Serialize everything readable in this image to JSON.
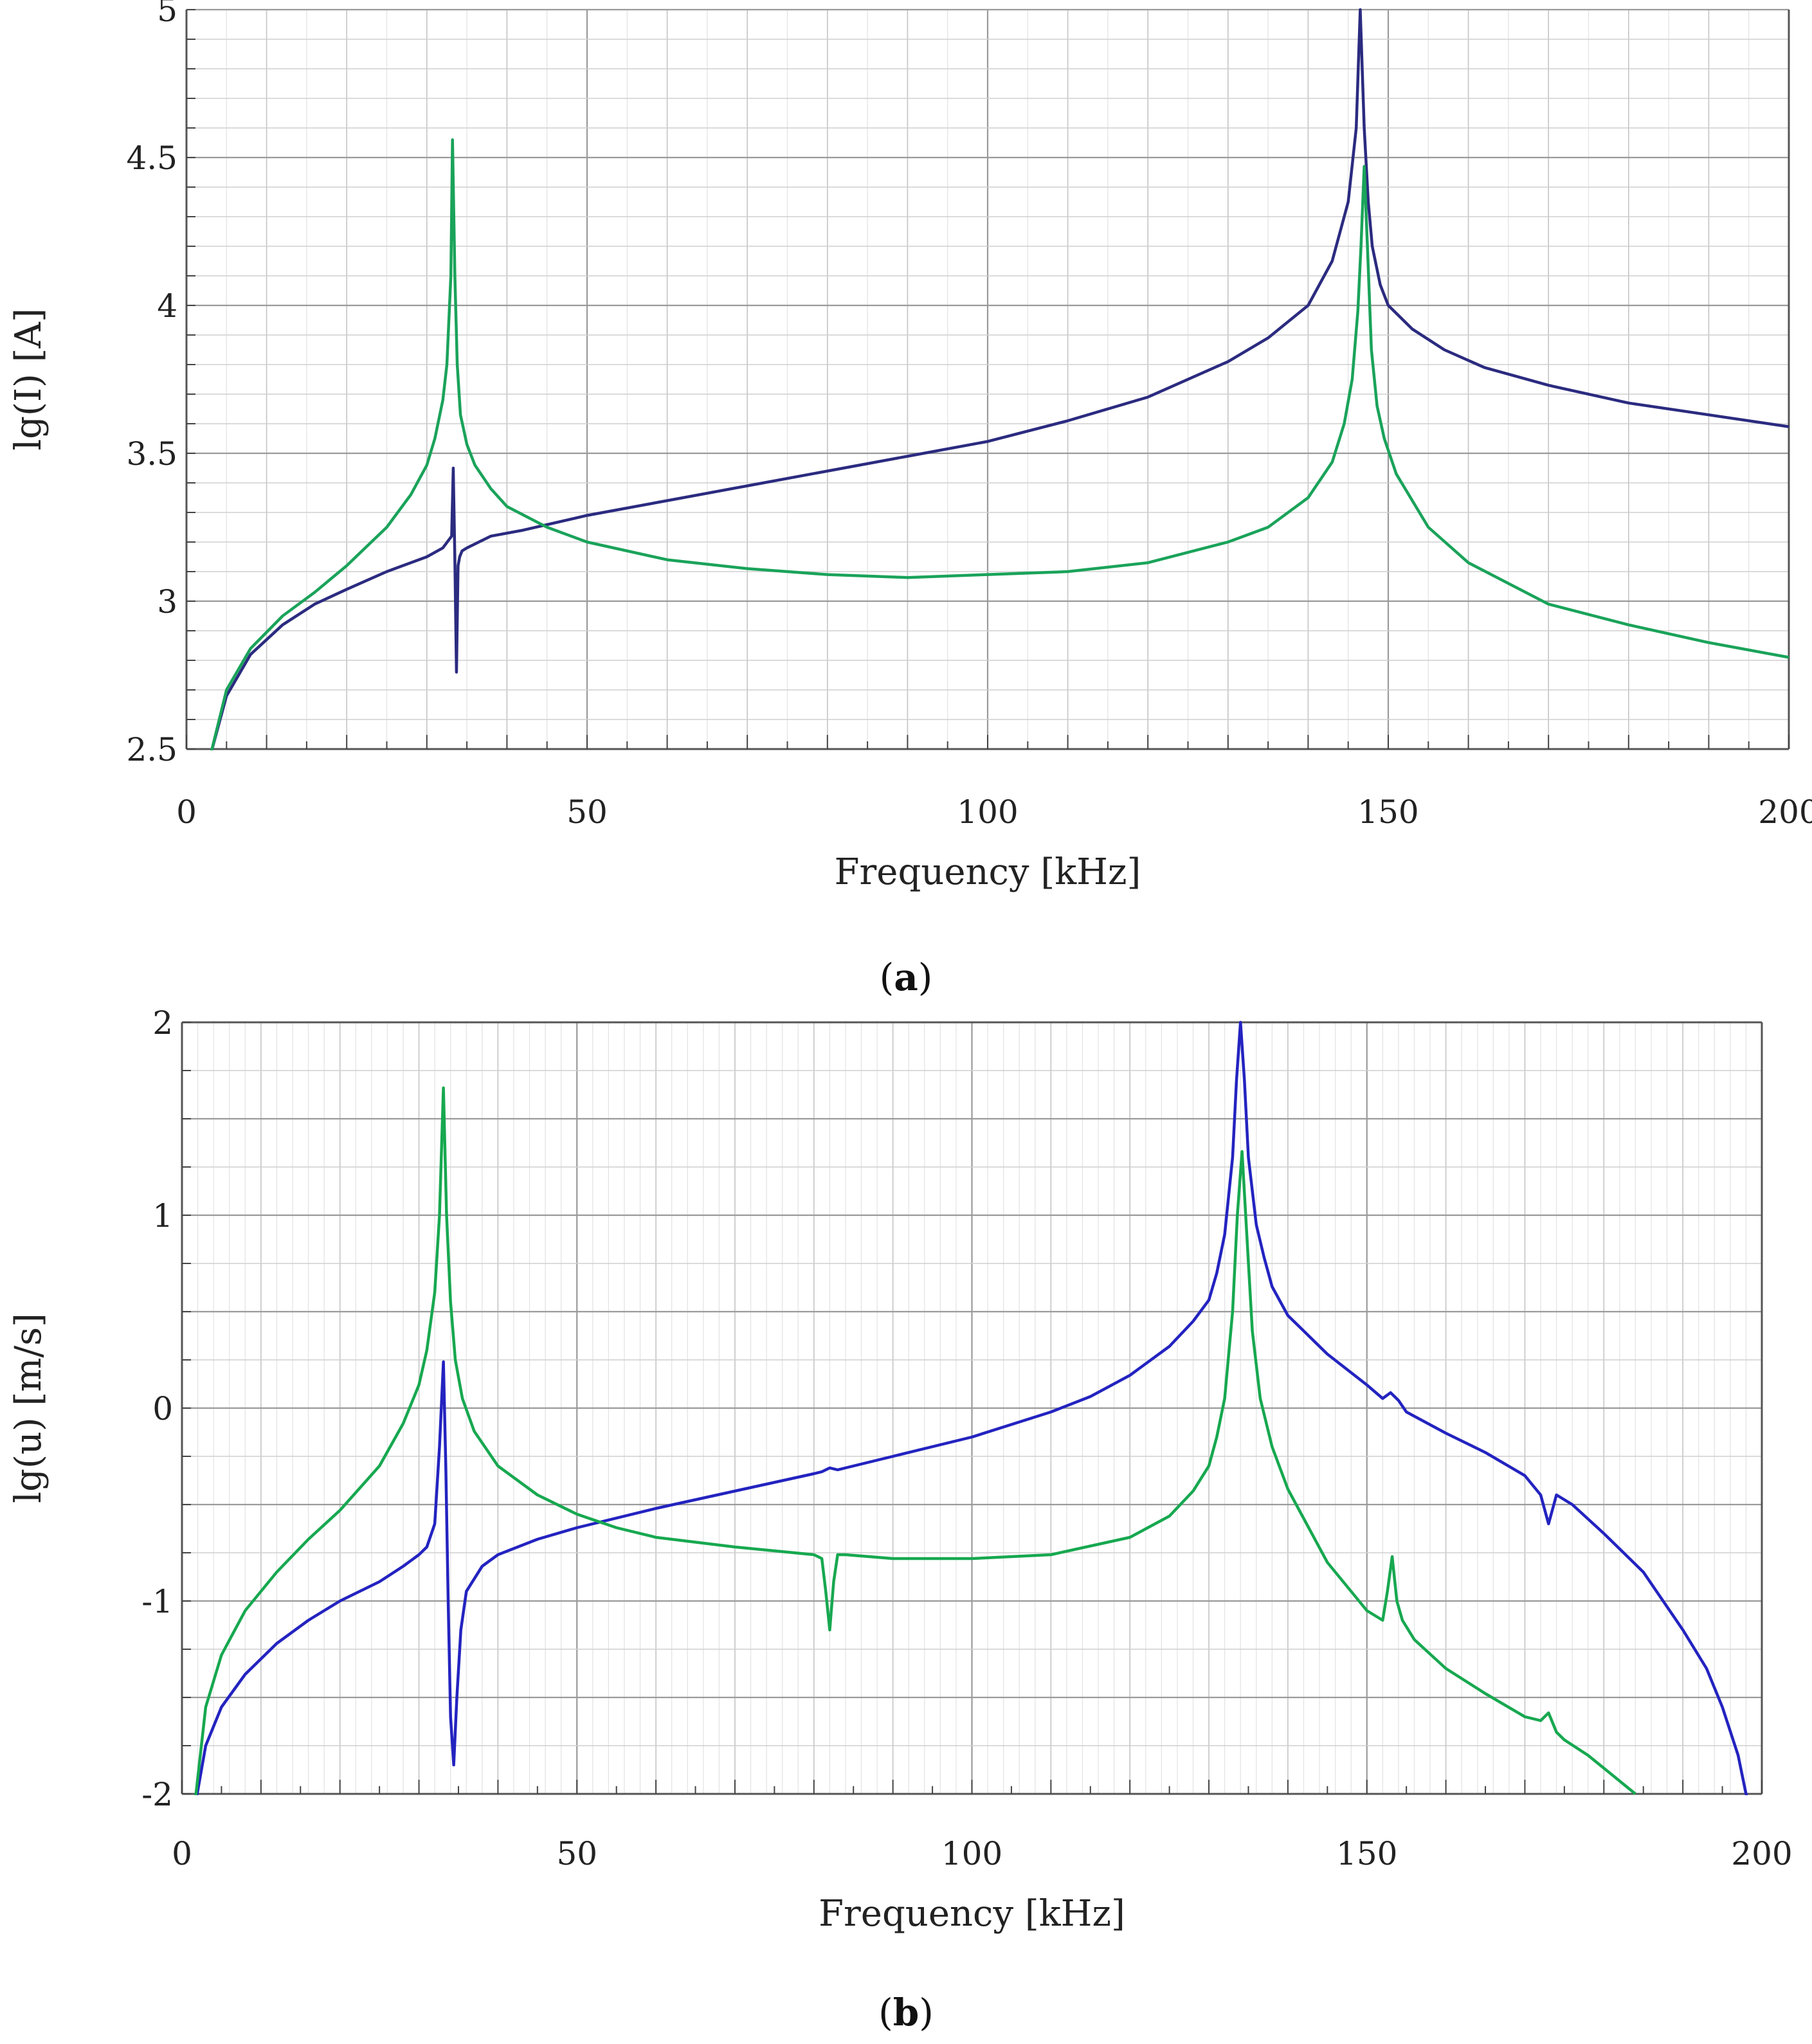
{
  "chart_data": [
    {
      "id": "a",
      "type": "line",
      "caption_letter": "a",
      "xlabel": "Frequency [kHz]",
      "ylabel": "lg(I) [A]",
      "xlim": [
        0,
        200
      ],
      "ylim": [
        2.5,
        5
      ],
      "xticks": [
        0,
        50,
        100,
        150,
        200
      ],
      "xtick_labels": [
        "0",
        "50",
        "100",
        "150",
        "200"
      ],
      "yticks": [
        2.5,
        3,
        3.5,
        4,
        4.5,
        5
      ],
      "ytick_labels": [
        "2.5",
        "3",
        "3.5",
        "4",
        "4.5",
        "5"
      ],
      "grid": true,
      "series": [
        {
          "name": "blue",
          "color": "#2b2b80",
          "x": [
            3,
            5,
            8,
            12,
            16,
            20,
            25,
            30,
            32,
            33.1,
            33.3,
            33.5,
            33.7,
            33.9,
            34.1,
            34.4,
            35,
            38,
            42,
            50,
            60,
            70,
            80,
            90,
            100,
            110,
            120,
            130,
            135,
            140,
            143,
            145,
            146,
            146.5,
            147,
            147.5,
            148,
            149,
            150,
            153,
            157,
            162,
            170,
            180,
            190,
            200
          ],
          "y": [
            2.48,
            2.68,
            2.82,
            2.92,
            2.99,
            3.04,
            3.1,
            3.15,
            3.18,
            3.22,
            3.45,
            3.14,
            2.76,
            3.12,
            3.15,
            3.17,
            3.18,
            3.22,
            3.24,
            3.29,
            3.34,
            3.39,
            3.44,
            3.49,
            3.54,
            3.61,
            3.69,
            3.81,
            3.89,
            4.0,
            4.15,
            4.35,
            4.6,
            5.0,
            4.6,
            4.35,
            4.2,
            4.07,
            4.0,
            3.92,
            3.85,
            3.79,
            3.73,
            3.67,
            3.63,
            3.59
          ]
        },
        {
          "name": "green",
          "color": "#1aa35a",
          "x": [
            3,
            5,
            8,
            12,
            16,
            20,
            25,
            28,
            30,
            31,
            32,
            32.5,
            33,
            33.2,
            33.5,
            33.8,
            34.2,
            35,
            36,
            38,
            40,
            45,
            50,
            60,
            70,
            80,
            90,
            100,
            110,
            120,
            130,
            135,
            140,
            143,
            144.5,
            145.5,
            146.2,
            146.6,
            147,
            147.4,
            147.9,
            148.6,
            149.5,
            151,
            155,
            160,
            170,
            180,
            190,
            200
          ],
          "y": [
            2.48,
            2.7,
            2.84,
            2.95,
            3.03,
            3.12,
            3.25,
            3.36,
            3.46,
            3.55,
            3.68,
            3.8,
            4.1,
            4.56,
            4.1,
            3.8,
            3.63,
            3.53,
            3.46,
            3.38,
            3.32,
            3.25,
            3.2,
            3.14,
            3.11,
            3.09,
            3.08,
            3.09,
            3.1,
            3.13,
            3.2,
            3.25,
            3.35,
            3.47,
            3.6,
            3.75,
            3.98,
            4.2,
            4.47,
            4.2,
            3.85,
            3.66,
            3.55,
            3.43,
            3.25,
            3.13,
            2.99,
            2.92,
            2.86,
            2.81
          ]
        }
      ]
    },
    {
      "id": "b",
      "type": "line",
      "caption_letter": "b",
      "xlabel": "Frequency [kHz]",
      "ylabel": "lg(u) [m/s]",
      "xlim": [
        0,
        200
      ],
      "ylim": [
        -2,
        2
      ],
      "xticks": [
        0,
        50,
        100,
        150,
        200
      ],
      "xtick_labels": [
        "0",
        "50",
        "100",
        "150",
        "200"
      ],
      "yticks": [
        -2,
        -1.5,
        -1,
        -0.5,
        0,
        0.5,
        1,
        1.5,
        2
      ],
      "ytick_labels": [
        "-2",
        "",
        "-1",
        "",
        "0",
        "",
        "1",
        "",
        "2"
      ],
      "grid": true,
      "series": [
        {
          "name": "blue",
          "color": "#2323c0",
          "x": [
            1.5,
            3,
            5,
            8,
            12,
            16,
            20,
            25,
            28,
            30,
            31,
            32,
            32.6,
            33.1,
            33.4,
            33.7,
            34,
            34.4,
            34.8,
            35.3,
            36,
            38,
            40,
            45,
            50,
            60,
            70,
            80,
            81,
            82,
            83,
            84,
            90,
            100,
            110,
            115,
            120,
            125,
            128,
            130,
            131,
            132,
            133,
            133.5,
            134,
            134.5,
            135,
            136,
            137,
            138,
            140,
            145,
            150,
            152,
            153,
            154,
            155,
            160,
            165,
            170,
            171,
            172,
            173,
            174,
            176,
            180,
            185,
            190,
            193,
            195,
            197,
            198,
            199
          ],
          "y": [
            -2.1,
            -1.75,
            -1.55,
            -1.38,
            -1.22,
            -1.1,
            -1.0,
            -0.9,
            -0.82,
            -0.76,
            -0.72,
            -0.6,
            -0.2,
            0.24,
            -0.3,
            -1.0,
            -1.6,
            -1.85,
            -1.5,
            -1.15,
            -0.95,
            -0.82,
            -0.76,
            -0.68,
            -0.62,
            -0.52,
            -0.43,
            -0.34,
            -0.33,
            -0.31,
            -0.32,
            -0.31,
            -0.25,
            -0.15,
            -0.02,
            0.06,
            0.17,
            0.32,
            0.45,
            0.56,
            0.7,
            0.9,
            1.3,
            1.7,
            2.0,
            1.7,
            1.3,
            0.95,
            0.78,
            0.63,
            0.48,
            0.28,
            0.12,
            0.05,
            0.08,
            0.04,
            -0.02,
            -0.13,
            -0.23,
            -0.35,
            -0.4,
            -0.45,
            -0.6,
            -0.45,
            -0.5,
            -0.65,
            -0.85,
            -1.15,
            -1.35,
            -1.55,
            -1.8,
            -2.0,
            -2.2
          ]
        },
        {
          "name": "green",
          "color": "#17a850",
          "x": [
            1.5,
            3,
            5,
            8,
            12,
            16,
            20,
            25,
            28,
            30,
            31,
            32,
            32.6,
            33.1,
            33.5,
            34,
            34.6,
            35.5,
            37,
            40,
            45,
            50,
            55,
            60,
            70,
            80,
            81,
            81.5,
            82,
            82.5,
            83,
            84,
            90,
            100,
            110,
            120,
            125,
            128,
            130,
            131,
            132,
            133,
            133.6,
            134.2,
            134.8,
            135.5,
            136.5,
            138,
            140,
            145,
            150,
            152,
            152.6,
            153.2,
            153.8,
            154.5,
            156,
            160,
            165,
            170,
            172,
            173,
            174,
            175,
            178,
            181,
            184
          ],
          "y": [
            -2.1,
            -1.55,
            -1.28,
            -1.05,
            -0.85,
            -0.68,
            -0.53,
            -0.3,
            -0.08,
            0.12,
            0.3,
            0.6,
            1.0,
            1.66,
            1.0,
            0.55,
            0.25,
            0.05,
            -0.12,
            -0.3,
            -0.45,
            -0.55,
            -0.62,
            -0.67,
            -0.72,
            -0.76,
            -0.78,
            -0.95,
            -1.15,
            -0.9,
            -0.76,
            -0.76,
            -0.78,
            -0.78,
            -0.76,
            -0.67,
            -0.56,
            -0.43,
            -0.3,
            -0.15,
            0.05,
            0.5,
            1.0,
            1.33,
            0.9,
            0.4,
            0.05,
            -0.2,
            -0.42,
            -0.8,
            -1.05,
            -1.1,
            -0.95,
            -0.77,
            -1.0,
            -1.1,
            -1.2,
            -1.35,
            -1.48,
            -1.6,
            -1.62,
            -1.58,
            -1.68,
            -1.72,
            -1.8,
            -1.9,
            -2.0
          ]
        }
      ]
    }
  ]
}
